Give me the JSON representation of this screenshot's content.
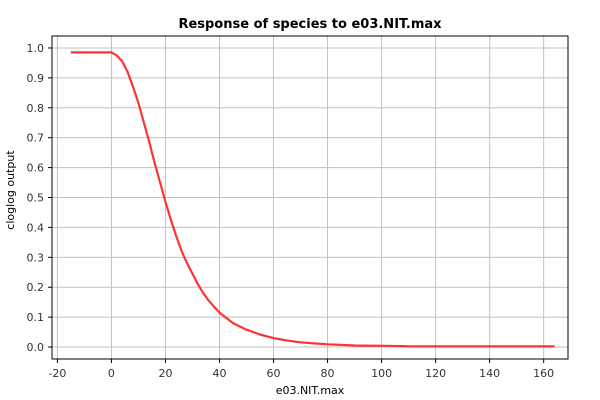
{
  "chart_data": {
    "type": "line",
    "title": "Response of species to e03.NIT.max",
    "xlabel": "e03.NIT.max",
    "ylabel": "cloglog output",
    "xlim": [
      -22,
      169
    ],
    "ylim": [
      -0.04,
      1.04
    ],
    "x_ticks": [
      -20,
      0,
      20,
      40,
      60,
      80,
      100,
      120,
      140,
      160
    ],
    "x_tick_labels": [
      "-20",
      "0",
      "20",
      "40",
      "60",
      "80",
      "100",
      "120",
      "140",
      "160"
    ],
    "y_ticks": [
      0.0,
      0.1,
      0.2,
      0.3,
      0.4,
      0.5,
      0.6,
      0.7,
      0.8,
      0.9,
      1.0
    ],
    "y_tick_labels": [
      "0.0",
      "0.1",
      "0.2",
      "0.3",
      "0.4",
      "0.5",
      "0.6",
      "0.7",
      "0.8",
      "0.9",
      "1.0"
    ],
    "grid": true,
    "colors": {
      "line": "#ff3333",
      "grid": "#c0c0c0",
      "axis": "#000000",
      "background": "#ffffff"
    },
    "series": [
      {
        "x": [
          -15,
          -5,
          0,
          2,
          4,
          6,
          8,
          10,
          12,
          14,
          16,
          18,
          20,
          22,
          24,
          26,
          28,
          30,
          32,
          34,
          36,
          38,
          40,
          45,
          50,
          55,
          60,
          65,
          70,
          75,
          80,
          85,
          90,
          100,
          108,
          110,
          120,
          140,
          164
        ],
        "y": [
          0.985,
          0.985,
          0.985,
          0.975,
          0.955,
          0.92,
          0.87,
          0.815,
          0.75,
          0.685,
          0.615,
          0.55,
          0.485,
          0.425,
          0.37,
          0.32,
          0.28,
          0.245,
          0.21,
          0.18,
          0.155,
          0.135,
          0.115,
          0.08,
          0.058,
          0.042,
          0.03,
          0.022,
          0.016,
          0.012,
          0.009,
          0.007,
          0.005,
          0.004,
          0.003,
          0.002,
          0.002,
          0.002,
          0.002
        ]
      }
    ]
  }
}
